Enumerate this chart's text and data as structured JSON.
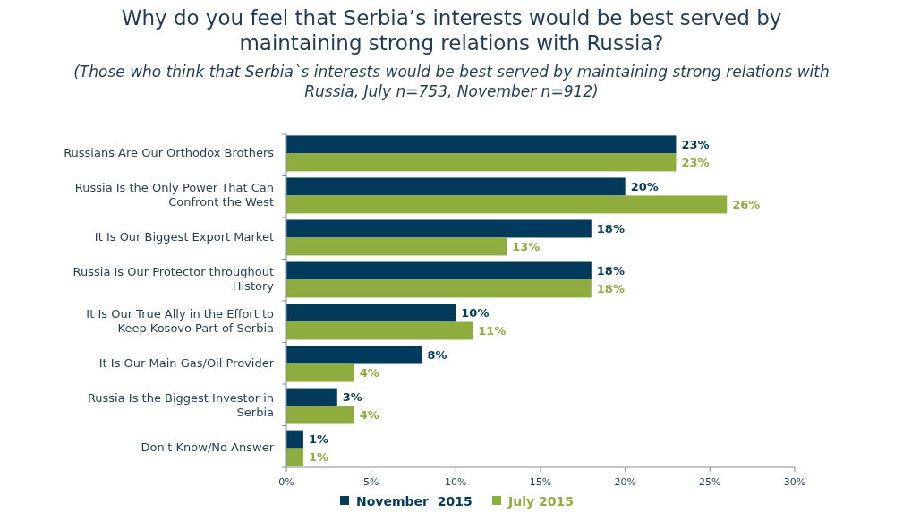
{
  "chart_data": {
    "type": "bar",
    "orientation": "horizontal",
    "title": "Why do you feel that Serbia’s interests would be best served by maintaining strong relations with Russia?",
    "subtitle": "(Those who think that Serbia`s interests would be best served by maintaining strong relations with Russia, July n=753, November n=912)",
    "categories": [
      "Russians Are Our Orthodox Brothers",
      "Russia Is the Only Power That Can Confront the West",
      "It Is Our Biggest Export Market",
      "Russia Is Our Protector throughout History",
      "It Is Our True Ally in the Effort to Keep Kosovo Part of Serbia",
      "It Is Our Main Gas/Oil Provider",
      "Russia Is the Biggest Investor in Serbia",
      "Don't Know/No Answer"
    ],
    "series": [
      {
        "name": "November  2015",
        "color": "#023a5c",
        "values": [
          23,
          20,
          18,
          18,
          10,
          8,
          3,
          1
        ],
        "value_labels": [
          "23%",
          "20%",
          "18%",
          "18%",
          "10%",
          "8%",
          "3%",
          "1%"
        ]
      },
      {
        "name": "July 2015",
        "color": "#8fad3f",
        "values": [
          23,
          26,
          13,
          18,
          11,
          4,
          4,
          1
        ],
        "value_labels": [
          "23%",
          "26%",
          "13%",
          "18%",
          "11%",
          "4%",
          "4%",
          "1%"
        ]
      }
    ],
    "xlim": [
      0,
      30
    ],
    "xticks": [
      {
        "value": 0,
        "label": "0%"
      },
      {
        "value": 5,
        "label": "5%"
      },
      {
        "value": 10,
        "label": "10%"
      },
      {
        "value": 15,
        "label": "15%"
      },
      {
        "value": 20,
        "label": "20%"
      },
      {
        "value": 25,
        "label": "25%"
      },
      {
        "value": 30,
        "label": "30%"
      }
    ],
    "legend": "bottom",
    "grid": false
  }
}
